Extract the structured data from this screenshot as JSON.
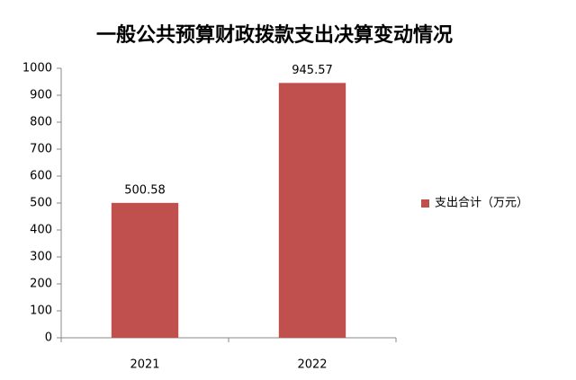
{
  "chart_data": {
    "type": "bar",
    "title": "一般公共预算财政拨款支出决算变动情况",
    "categories": [
      "2021",
      "2022"
    ],
    "series": [
      {
        "name": "支出合计（万元）",
        "color": "#c0504d",
        "values": [
          500.58,
          945.57
        ]
      }
    ],
    "ylim": [
      0,
      1000
    ],
    "yticks": [
      0,
      100,
      200,
      300,
      400,
      500,
      600,
      700,
      800,
      900,
      1000
    ],
    "grid": false,
    "legend": "right"
  }
}
